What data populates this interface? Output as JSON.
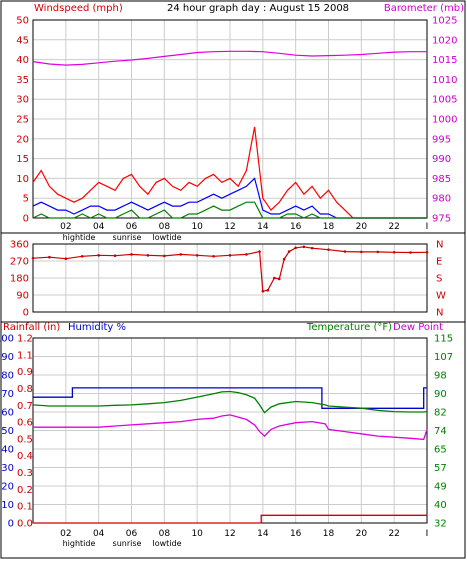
{
  "chart_data": [
    {
      "type": "line",
      "title": "24 hour graph day : August 15 2008",
      "left_axis_label": "Windspeed (mph)",
      "right_axis_label": "Barometer (mb)",
      "left_ticks": [
        "0",
        "5",
        "10",
        "15",
        "20",
        "25",
        "30",
        "35",
        "40",
        "45",
        "50"
      ],
      "right_ticks": [
        "975",
        "980",
        "985",
        "990",
        "995",
        "1000",
        "1005",
        "1010",
        "1015",
        "1020",
        "1025"
      ],
      "x_ticks": [
        "02",
        "04",
        "06",
        "08",
        "10",
        "12",
        "14",
        "16",
        "18",
        "20",
        "22"
      ],
      "x_annotations": [
        "hightide",
        "sunrise",
        "lowtide"
      ],
      "ylim_left": [
        0,
        50
      ],
      "ylim_right": [
        975,
        1025
      ],
      "xlim": [
        0,
        24
      ],
      "grid": true,
      "series": [
        {
          "name": "",
          "color": "#e000e0",
          "axis": "right",
          "x": [
            0,
            1,
            2,
            3,
            4,
            5,
            6,
            7,
            8,
            9,
            10,
            11,
            12,
            13,
            14,
            15,
            16,
            17,
            18,
            19,
            20,
            21,
            22,
            23,
            24
          ],
          "values": [
            1014.5,
            1013.9,
            1013.6,
            1013.8,
            1014.2,
            1014.6,
            1014.9,
            1015.3,
            1015.8,
            1016.3,
            1016.8,
            1017.0,
            1017.1,
            1017.1,
            1017.0,
            1016.6,
            1016.1,
            1015.9,
            1016.0,
            1016.1,
            1016.3,
            1016.6,
            1016.9,
            1017.0,
            1017.0
          ]
        },
        {
          "name": "",
          "color": "#ff0000",
          "axis": "left",
          "x": [
            0,
            0.5,
            1,
            1.5,
            2,
            2.5,
            3,
            3.5,
            4,
            4.5,
            5,
            5.5,
            6,
            6.5,
            7,
            7.5,
            8,
            8.5,
            9,
            9.5,
            10,
            10.5,
            11,
            11.5,
            12,
            12.5,
            13,
            13.5,
            14,
            14.5,
            15,
            15.5,
            16,
            16.5,
            17,
            17.5,
            18,
            18.5,
            19,
            19.5,
            20,
            20.5,
            21,
            21.5,
            22,
            22.5,
            23,
            23.5,
            24
          ],
          "values": [
            9,
            12,
            8,
            6,
            5,
            4,
            5,
            7,
            9,
            8,
            7,
            10,
            11,
            8,
            6,
            9,
            10,
            8,
            7,
            9,
            8,
            10,
            11,
            9,
            10,
            8,
            12,
            23,
            5,
            2,
            4,
            7,
            9,
            6,
            8,
            5,
            7,
            4,
            2,
            0,
            0,
            0,
            0,
            0,
            0,
            0,
            0,
            0,
            0
          ]
        },
        {
          "name": "",
          "color": "#0000ff",
          "axis": "left",
          "x": [
            0,
            0.5,
            1,
            1.5,
            2,
            2.5,
            3,
            3.5,
            4,
            4.5,
            5,
            5.5,
            6,
            6.5,
            7,
            7.5,
            8,
            8.5,
            9,
            9.5,
            10,
            10.5,
            11,
            11.5,
            12,
            12.5,
            13,
            13.5,
            14,
            14.5,
            15,
            15.5,
            16,
            16.5,
            17,
            17.5,
            18,
            18.5,
            19,
            19.5,
            20,
            20.5,
            21,
            21.5,
            22,
            22.5,
            23,
            23.5,
            24
          ],
          "values": [
            3,
            4,
            3,
            2,
            2,
            1,
            2,
            3,
            3,
            2,
            2,
            3,
            4,
            3,
            2,
            3,
            4,
            3,
            3,
            4,
            4,
            5,
            6,
            5,
            6,
            7,
            8,
            10,
            2,
            1,
            1,
            2,
            3,
            2,
            3,
            1,
            1,
            0,
            0,
            0,
            0,
            0,
            0,
            0,
            0,
            0,
            0,
            0,
            0
          ]
        },
        {
          "name": "",
          "color": "#008000",
          "axis": "left",
          "x": [
            0,
            0.5,
            1,
            1.5,
            2,
            2.5,
            3,
            3.5,
            4,
            4.5,
            5,
            5.5,
            6,
            6.5,
            7,
            7.5,
            8,
            8.5,
            9,
            9.5,
            10,
            10.5,
            11,
            11.5,
            12,
            12.5,
            13,
            13.5,
            14,
            14.5,
            15,
            15.5,
            16,
            16.5,
            17,
            17.5,
            18,
            18.5,
            19,
            19.5,
            20,
            20.5,
            21,
            21.5,
            22,
            22.5,
            23,
            23.5,
            24
          ],
          "values": [
            0,
            1,
            0,
            0,
            0,
            0,
            1,
            0,
            1,
            0,
            0,
            1,
            2,
            0,
            0,
            1,
            2,
            0,
            0,
            1,
            1,
            2,
            3,
            2,
            2,
            3,
            4,
            4,
            0,
            0,
            0,
            1,
            1,
            0,
            1,
            0,
            0,
            0,
            0,
            0,
            0,
            0,
            0,
            0,
            0,
            0,
            0,
            0,
            0
          ]
        }
      ]
    },
    {
      "type": "line",
      "title": "",
      "left_ticks": [
        "0",
        "90",
        "180",
        "270",
        "360"
      ],
      "right_ticks": [
        "N",
        "W",
        "S",
        "E",
        "N"
      ],
      "x_ticks": [],
      "ylim_left": [
        0,
        360
      ],
      "xlim": [
        0,
        24
      ],
      "grid": true,
      "series": [
        {
          "name": "",
          "color": "#cc0000",
          "axis": "left",
          "x": [
            0,
            1,
            2,
            3,
            4,
            5,
            6,
            7,
            8,
            9,
            10,
            11,
            12,
            13,
            13.8,
            14,
            14.3,
            14.7,
            15,
            15.3,
            15.6,
            16,
            16.5,
            17,
            18,
            19,
            20,
            21,
            22,
            23,
            24
          ],
          "values": [
            285,
            290,
            282,
            295,
            300,
            298,
            305,
            300,
            297,
            305,
            300,
            295,
            300,
            305,
            320,
            110,
            115,
            180,
            175,
            280,
            320,
            340,
            345,
            338,
            330,
            320,
            318,
            318,
            316,
            315,
            316
          ]
        }
      ]
    },
    {
      "type": "line",
      "title": "",
      "left_axis_label_1": "Rainfall (in)",
      "left_axis_label_2": "Humidity %",
      "right_axis_label_1": "Temperature (°F)",
      "right_axis_label_2": "Dew Point",
      "rain_ticks": [
        "0.0",
        "0.1",
        "0.2",
        "0.3",
        "0.4",
        "0.5",
        "0.6",
        "0.7",
        "0.8",
        "0.9",
        "1.1",
        "1.2"
      ],
      "humidity_ticks": [
        "0",
        "10",
        "20",
        "30",
        "40",
        "50",
        "60",
        "70",
        "80",
        "90",
        "100"
      ],
      "temp_ticks": [
        "32",
        "40",
        "49",
        "57",
        "65",
        "74",
        "82",
        "90",
        "98",
        "107",
        "115"
      ],
      "x_ticks": [
        "02",
        "04",
        "06",
        "08",
        "10",
        "12",
        "14",
        "16",
        "18",
        "20",
        "22"
      ],
      "x_annotations": [
        "hightide",
        "sunrise",
        "lowtide"
      ],
      "ylim_humidity": [
        0,
        100
      ],
      "ylim_temp": [
        32,
        115
      ],
      "ylim_rain": [
        0,
        1.2
      ],
      "xlim": [
        0,
        24
      ],
      "grid": true,
      "series": [
        {
          "name": "Humidity %",
          "color": "#0000cc",
          "axis": "humidity",
          "x": [
            0,
            2.4,
            2.4,
            17.6,
            17.6,
            23.8,
            23.8,
            24
          ],
          "values": [
            68,
            68,
            73,
            73,
            62,
            62,
            73,
            73
          ]
        },
        {
          "name": "Temperature (°F)",
          "color": "#008000",
          "axis": "temp",
          "x": [
            0,
            1,
            2,
            3,
            4,
            5,
            6,
            7,
            8,
            9,
            10,
            11,
            11.5,
            12,
            12.5,
            13,
            13.5,
            13.8,
            14.1,
            14.5,
            15,
            16,
            17,
            17.8,
            18,
            19,
            20,
            21,
            22,
            23,
            23.8,
            24
          ],
          "values": [
            85,
            84.5,
            84.5,
            84.5,
            84.5,
            84.8,
            85,
            85.5,
            86,
            87,
            88.5,
            90,
            90.8,
            91,
            90.5,
            89.5,
            88,
            85,
            81.5,
            84,
            85.5,
            86.5,
            86,
            85,
            84.5,
            84,
            83.5,
            82.5,
            82,
            81.8,
            81.8,
            82
          ]
        },
        {
          "name": "Dew Point",
          "color": "#e000e0",
          "axis": "temp",
          "x": [
            0,
            1,
            2,
            3,
            4,
            5,
            6,
            7,
            8,
            9,
            10,
            11,
            11.5,
            12,
            12.5,
            13,
            13.5,
            13.8,
            14.1,
            14.5,
            15,
            16,
            17,
            17.8,
            18,
            19,
            20,
            21,
            22,
            23,
            23.8,
            24
          ],
          "values": [
            75,
            75,
            75,
            75,
            75,
            75.5,
            76,
            76.5,
            77,
            77.5,
            78.5,
            79,
            80,
            80.5,
            79.5,
            78.5,
            76,
            73,
            71,
            74,
            75.5,
            77,
            77.5,
            76.5,
            74,
            73,
            72,
            71,
            70.5,
            70,
            69.5,
            74
          ]
        },
        {
          "name": "Rainfall (in)",
          "color": "#cc0000",
          "axis": "rain",
          "x": [
            0,
            13.9,
            13.9,
            24
          ],
          "values": [
            0,
            0,
            0.05,
            0.05
          ]
        }
      ]
    }
  ]
}
